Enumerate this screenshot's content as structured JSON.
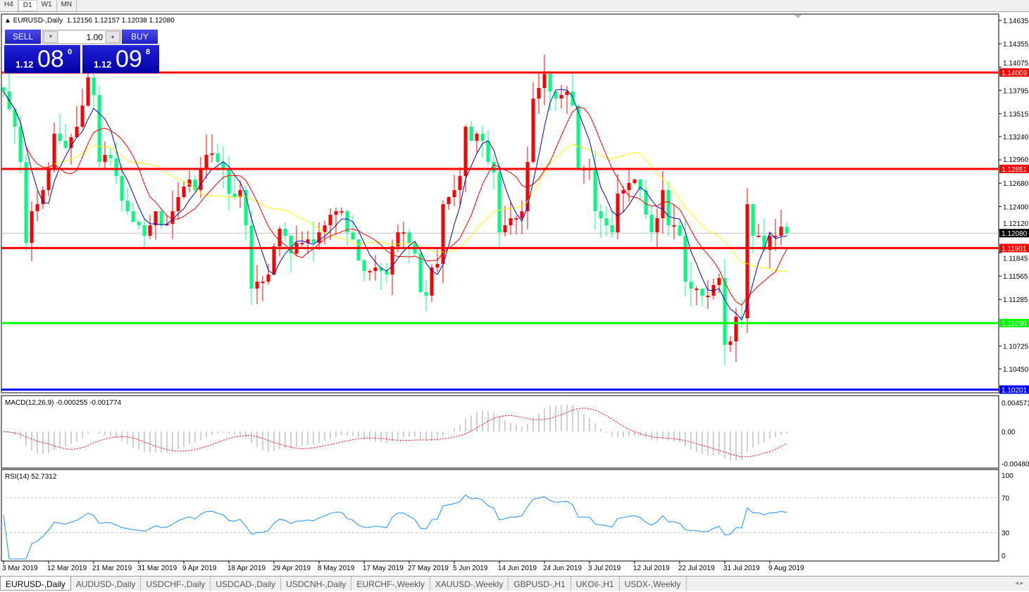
{
  "toolbar": {
    "timeframes": [
      "H4",
      "D1",
      "W1",
      "MN"
    ],
    "active": "D1"
  },
  "chart_header": {
    "symbol": "EURUSD-,Daily",
    "open": "1.12156",
    "high": "1.12157",
    "low": "1.12038",
    "close": "1.12080"
  },
  "trade_panel": {
    "sell_label": "SELL",
    "buy_label": "BUY",
    "lot": "1.00",
    "sell_price": {
      "prefix": "1.12",
      "big": "08",
      "sup": "0"
    },
    "buy_price": {
      "prefix": "1.12",
      "big": "09",
      "sup": "8"
    }
  },
  "price_axis": [
    "1.14635",
    "1.14355",
    "1.14075",
    "1.13795",
    "1.13515",
    "1.13240",
    "1.12960",
    "1.12680",
    "1.12400",
    "1.12120",
    "1.11845",
    "1.11565",
    "1.11285",
    "1.10725",
    "1.10450"
  ],
  "levels": [
    {
      "price": 1.14009,
      "label": "1.14009",
      "color": "#ff0000"
    },
    {
      "price": 1.12851,
      "label": "1.12851",
      "color": "#ff0000"
    },
    {
      "price": 1.11901,
      "label": "1.11901",
      "color": "#ff0000"
    },
    {
      "price": 1.11,
      "label": "1.11000",
      "color": "#00ff00"
    },
    {
      "price": 1.10201,
      "label": "1.10201",
      "color": "#0000ff"
    }
  ],
  "current_price": {
    "price": 1.1208,
    "label": "1.12080"
  },
  "colors": {
    "bull": "#ff0000",
    "bear": "#00ff80",
    "ma_fast": "#0000cc",
    "ma_mid": "#ff0000",
    "ma_slow": "#ffff00"
  },
  "closes": [
    1.13781,
    1.13569,
    1.13358,
    1.12935,
    1.11963,
    1.12343,
    1.12428,
    1.12597,
    1.12851,
    1.13274,
    1.13189,
    1.13104,
    1.13231,
    1.13358,
    1.13612,
    1.1395,
    1.13739,
    1.12935,
    1.1302,
    1.12978,
    1.12766,
    1.1247,
    1.12343,
    1.12217,
    1.12174,
    1.12048,
    1.12174,
    1.12343,
    1.12174,
    1.12191,
    1.12343,
    1.12513,
    1.12639,
    1.12724,
    1.12597,
    1.12851,
    1.1302,
    1.13037,
    1.12935,
    1.12851,
    1.12555,
    1.12513,
    1.12597,
    1.12174,
    1.11414,
    1.11498,
    1.11498,
    1.11583,
    1.11921,
    1.12132,
    1.12048,
    1.11836,
    1.11963,
    1.11963,
    1.12005,
    1.11963,
    1.1209,
    1.12174,
    1.12301,
    1.12343,
    1.12343,
    1.1209,
    1.12005,
    1.11752,
    1.11625,
    1.11625,
    1.11667,
    1.11625,
    1.11583,
    1.11921,
    1.1209,
    1.1209,
    1.11963,
    1.11836,
    1.11371,
    1.11329,
    1.11667,
    1.1171,
    1.12428,
    1.12513,
    1.12597,
    1.12766,
    1.13358,
    1.13189,
    1.13274,
    1.13189,
    1.12935,
    1.12809,
    1.1209,
    1.12174,
    1.12259,
    1.12259,
    1.12343,
    1.12935,
    1.13696,
    1.13823,
    1.13992,
    1.13781,
    1.13696,
    1.13739,
    1.13781,
    1.13612,
    1.12851,
    1.12851,
    1.12851,
    1.12343,
    1.12259,
    1.12174,
    1.1209,
    1.12555,
    1.12597,
    1.12682,
    1.12724,
    1.12597,
    1.12301,
    1.1209,
    1.12259,
    1.12597,
    1.12174,
    1.12174,
    1.12048,
    1.11498,
    1.11414,
    1.11414,
    1.11329,
    1.11329,
    1.11456,
    1.11541,
    1.10737,
    1.10779,
    1.11075,
    1.11058,
    1.12428,
    1.12048,
    1.12048,
    1.11878,
    1.12048,
    1.12048,
    1.12157,
    1.1208
  ],
  "dates": [
    "3 Mar 2019",
    "12 Mar 2019",
    "21 Mar 2019",
    "31 Mar 2019",
    "9 Apr 2019",
    "18 Apr 2019",
    "29 Apr 2019",
    "8 May 2019",
    "17 May 2019",
    "27 May 2019",
    "5 Jun 2019",
    "14 Jun 2019",
    "24 Jun 2019",
    "3 Jul 2019",
    "12 Jul 2019",
    "22 Jul 2019",
    "31 Jul 2019",
    "9 Aug 2019"
  ],
  "macd": {
    "label": "MACD(12,26,9) -0.000255 -0.001774",
    "axis": [
      "0.004571",
      "0.00",
      "-0.004806"
    ]
  },
  "rsi": {
    "label": "RSI(14) 52.7312",
    "axis": [
      "100",
      "70",
      "30",
      "0"
    ]
  },
  "tabs": [
    "EURUSD-,Daily",
    "AUDUSD-,Daily",
    "USDCHF-,Daily",
    "USDCAD-,Daily",
    "USDCNH-,Daily",
    "EURCHF-,Weekly",
    "XAUUSD-,Weekly",
    "GBPUSD-,H1",
    "UKOil-,H1",
    "USDX-,Weekly"
  ],
  "active_tab": "EURUSD-,Daily",
  "tab_nav": "◂ ▸"
}
